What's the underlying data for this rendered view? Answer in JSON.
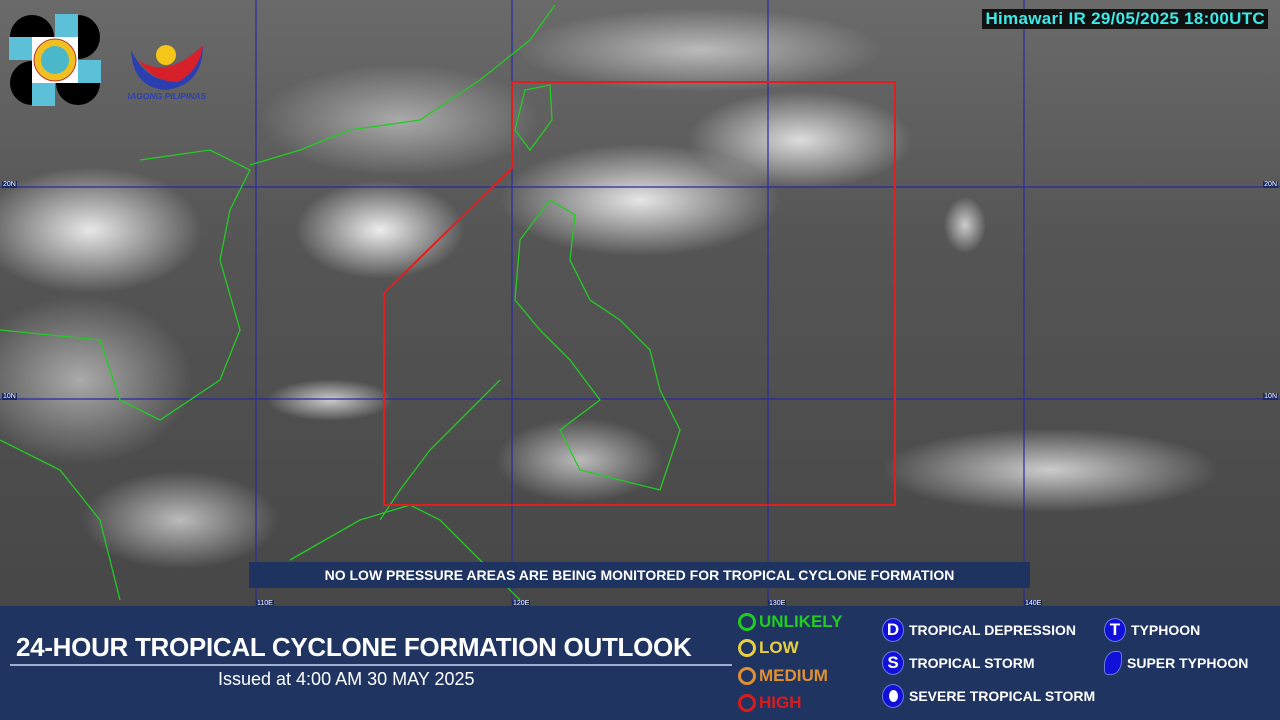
{
  "header": {
    "satellite_stamp": "Himawari IR 29/05/2025 18:00UTC",
    "logos": [
      "PAGASA 1865",
      "BAGONG PILIPINAS"
    ]
  },
  "map": {
    "lat_labels": [
      "20N",
      "10N"
    ],
    "lon_labels": [
      "110E",
      "120E",
      "130E",
      "140E"
    ],
    "area_of_responsibility_color": "#e02020",
    "coastline_color": "#22cc22",
    "grid_color": "#2a2aa0"
  },
  "banner": "NO LOW PRESSURE AREAS ARE BEING MONITORED FOR TROPICAL CYCLONE FORMATION",
  "panel": {
    "title": "24-HOUR TROPICAL CYCLONE FORMATION OUTLOOK",
    "issued": "Issued at 4:00 AM  30 MAY 2025",
    "levels": [
      {
        "label": "UNLIKELY",
        "color": "#22cc22"
      },
      {
        "label": "LOW",
        "color": "#e8d040"
      },
      {
        "label": "MEDIUM",
        "color": "#e09030"
      },
      {
        "label": "HIGH",
        "color": "#dd1a1a"
      }
    ],
    "classes": [
      {
        "symbol": "D",
        "label": "TROPICAL DEPRESSION"
      },
      {
        "symbol": "S",
        "label": "TROPICAL STORM"
      },
      {
        "symbol": "",
        "label": "SEVERE TROPICAL STORM"
      },
      {
        "symbol": "T",
        "label": "TYPHOON"
      },
      {
        "symbol": "",
        "label": "SUPER TYPHOON"
      }
    ]
  }
}
